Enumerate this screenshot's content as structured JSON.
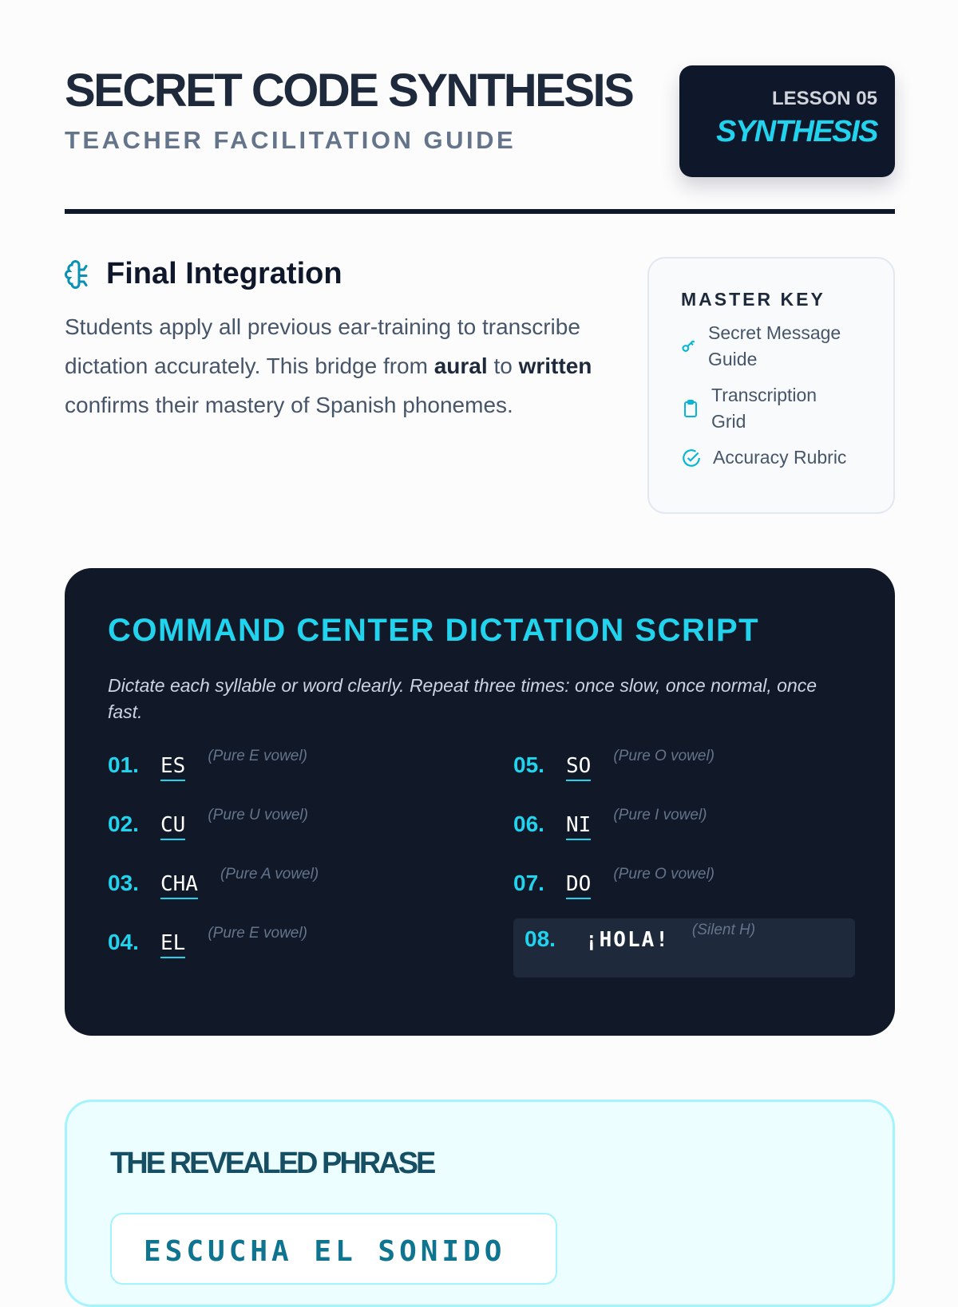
{
  "header": {
    "title": "SECRET CODE SYNTHESIS",
    "subtitle": "TEACHER FACILITATION GUIDE",
    "badge_lesson": "LESSON 05",
    "badge_name": "SYNTHESIS"
  },
  "intro": {
    "icon": "brain-circuit-icon",
    "heading": "Final Integration",
    "p1": "Students apply all previous ear-training to transcribe dictation accurately. This bridge from ",
    "b1": "aural",
    "p2": " to ",
    "b2": "written",
    "p3": " confirms their mastery of Spanish phonemes."
  },
  "master_key": {
    "title": "MASTER KEY",
    "items": [
      {
        "icon": "key-icon",
        "label": "Secret Message Guide"
      },
      {
        "icon": "clipboard-icon",
        "label": "Transcription Grid"
      },
      {
        "icon": "check-circle-icon",
        "label": "Accuracy Rubric"
      }
    ]
  },
  "script": {
    "title": "COMMAND CENTER DICTATION SCRIPT",
    "instructions": "Dictate each syllable or word clearly. Repeat three times: once slow, once normal, once fast.",
    "items": [
      {
        "num": "01.",
        "word": "ES",
        "note": "(Pure E vowel)"
      },
      {
        "num": "05.",
        "word": "SO",
        "note": "(Pure O vowel)"
      },
      {
        "num": "02.",
        "word": "CU",
        "note": "(Pure U vowel)"
      },
      {
        "num": "06.",
        "word": "NI",
        "note": "(Pure I vowel)"
      },
      {
        "num": "03.",
        "word": "CHA",
        "note": "(Pure A vowel)"
      },
      {
        "num": "07.",
        "word": "DO",
        "note": "(Pure O vowel)"
      },
      {
        "num": "04.",
        "word": "EL",
        "note": "(Pure E vowel)"
      },
      {
        "num": "08.",
        "word": "¡HOLA!",
        "note": "(Silent H)"
      }
    ]
  },
  "reveal": {
    "title": "THE REVEALED PHRASE",
    "phrase": "ESCUCHA EL SONIDO"
  },
  "colors": {
    "accent": "#22d3ee",
    "dark": "#0f172a"
  }
}
